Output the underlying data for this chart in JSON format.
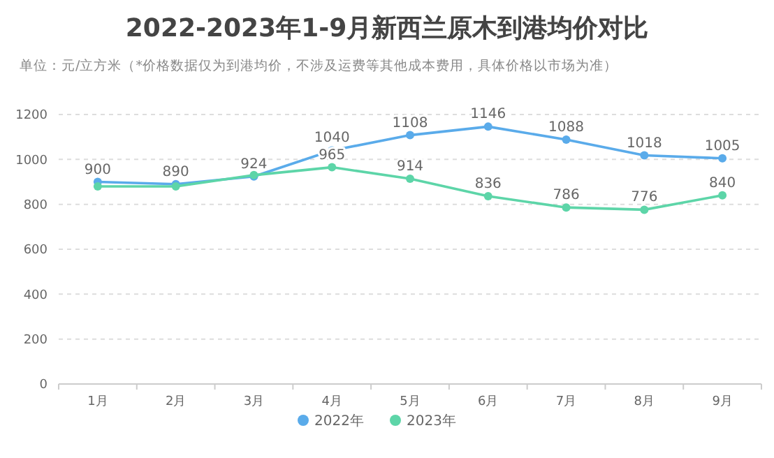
{
  "chart_data": {
    "type": "line",
    "title": "2022-2023年1-9月新西兰原木到港均价对比",
    "subtitle": "单位：元/立方米（*价格数据仅为到港均价，不涉及运费等其他成本费用，具体价格以市场为准）",
    "categories": [
      "1月",
      "2月",
      "3月",
      "4月",
      "5月",
      "6月",
      "7月",
      "8月",
      "9月"
    ],
    "series": [
      {
        "name": "2022年",
        "color": "#5aabea",
        "values": [
          900,
          890,
          924,
          1040,
          1108,
          1146,
          1088,
          1018,
          1005
        ],
        "value_labels": [
          "900",
          "890",
          "924",
          "1040",
          "1108",
          "1146",
          "1088",
          "1018",
          "1005"
        ]
      },
      {
        "name": "2023年",
        "color": "#5dd5a8",
        "values": [
          880,
          880,
          930,
          965,
          914,
          836,
          786,
          776,
          840
        ],
        "value_labels": [
          null,
          null,
          null,
          "965",
          "914",
          "836",
          "786",
          "776",
          "840"
        ]
      }
    ],
    "ylim": [
      0,
      1200
    ],
    "yticks": [
      0,
      200,
      400,
      600,
      800,
      1000,
      1200
    ],
    "grid": "y",
    "legend": "bottom",
    "marker": "circle",
    "line_style": "solid"
  }
}
